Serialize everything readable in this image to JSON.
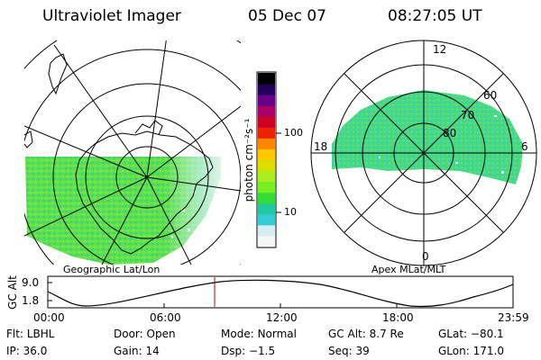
{
  "header": {
    "instrument": "Ultraviolet Imager",
    "date": "05 Dec 07",
    "time": "08:27:05 UT"
  },
  "colorbar": {
    "label": "photon cm⁻²s⁻¹",
    "ticks": [
      "100",
      "10"
    ],
    "colors": [
      "#f4f8fa",
      "#d6eef2",
      "#33ccd6",
      "#22c8a0",
      "#33dd33",
      "#77ee22",
      "#aaee22",
      "#dddd00",
      "#ffc800",
      "#ff8800",
      "#ee2200",
      "#cc0022",
      "#aa0066",
      "#660088",
      "#220055",
      "#000000"
    ]
  },
  "left_map": {
    "caption": "Geographic Lat/Lon",
    "style": "green-auroral-oval"
  },
  "right_map": {
    "caption": "Apex MLat/MLT",
    "mlt_labels": {
      "top": "12",
      "left": "18",
      "right": "6",
      "bottom": "0"
    },
    "lat_labels": [
      "60",
      "70",
      "80"
    ]
  },
  "gc_alt_plot": {
    "ylabel": "GC Alt",
    "yticks": [
      "9.0",
      "1.8"
    ],
    "xticks": [
      "00:00",
      "06:00",
      "12:00",
      "18:00",
      "23:59"
    ],
    "marker_color": "#cc0000"
  },
  "footer": [
    {
      "label": "Flt:",
      "value": "LBHL"
    },
    {
      "label": "Door:",
      "value": "Open"
    },
    {
      "label": "Mode:",
      "value": "Normal"
    },
    {
      "label": "GC Alt:",
      "value": "8.7 Re"
    },
    {
      "label": "GLat:",
      "value": "−80.1"
    },
    {
      "label": "IP:",
      "value": "36.0"
    },
    {
      "label": "Gain:",
      "value": "14"
    },
    {
      "label": "Dsp:",
      "value": "−1.5"
    },
    {
      "label": "Seq:",
      "value": "39"
    },
    {
      "label": "GLon:",
      "value": "171.0"
    }
  ]
}
